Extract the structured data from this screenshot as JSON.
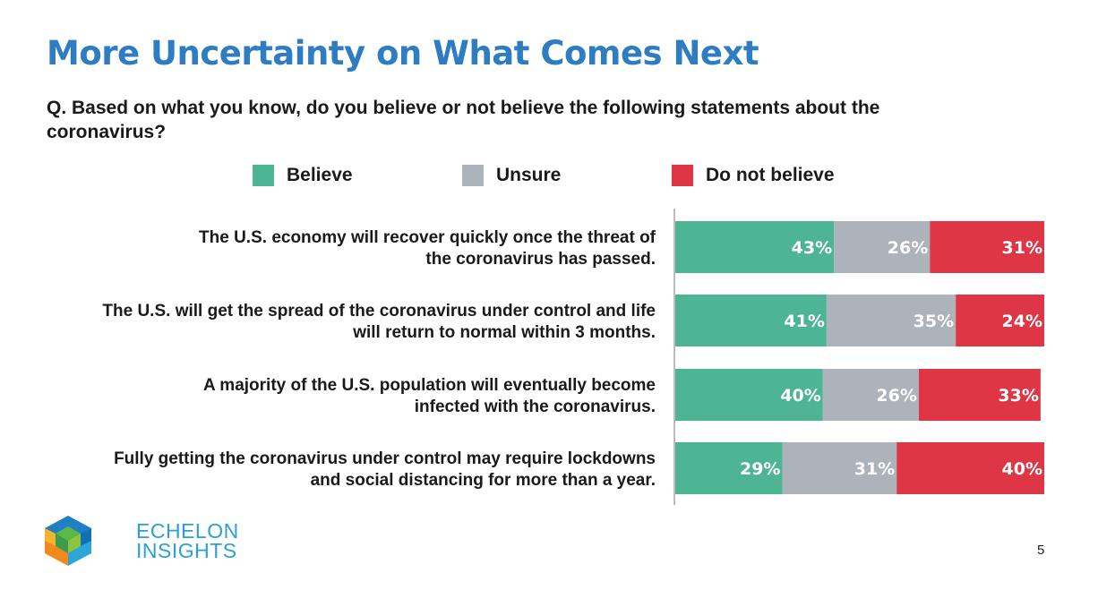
{
  "slide": {
    "title": "More Uncertainty on What Comes Next",
    "question": "Q. Based on what you know, do you believe or not believe the following statements about the coronavirus?",
    "page_number": "5"
  },
  "logo": {
    "line1": "ECHELON",
    "line2": "INSIGHTS"
  },
  "colors": {
    "believe": "#4db594",
    "unsure": "#adb3ba",
    "not_believe": "#de3645",
    "title": "#2e7cc1"
  },
  "chart_data": {
    "type": "bar",
    "orientation": "horizontal",
    "stacked": true,
    "categories": [
      "The U.S. economy will recover quickly once the threat of the coronavirus has passed.",
      "The U.S. will get the spread of the coronavirus under control and life will return to normal within 3 months.",
      "A majority of the U.S. population will eventually become infected with the coronavirus.",
      "Fully getting the coronavirus under control may require lockdowns and social distancing for more than a year."
    ],
    "category_lines": [
      [
        "The U.S. economy will recover quickly once the threat of",
        "the coronavirus has passed."
      ],
      [
        "The U.S. will get the spread of the coronavirus under control and life",
        "will return to normal within 3 months."
      ],
      [
        "A majority of the U.S. population will eventually become",
        "infected with the coronavirus."
      ],
      [
        "Fully getting the coronavirus under control may require lockdowns",
        "and social distancing for more than a year."
      ]
    ],
    "series": [
      {
        "name": "Believe",
        "values": [
          43,
          41,
          40,
          29
        ],
        "labels": [
          "43%",
          "41%",
          "40%",
          "29%"
        ]
      },
      {
        "name": "Unsure",
        "values": [
          26,
          35,
          26,
          31
        ],
        "labels": [
          "26%",
          "35%",
          "26%",
          "31%"
        ]
      },
      {
        "name": "Do not believe",
        "values": [
          31,
          24,
          33,
          40
        ],
        "labels": [
          "31%",
          "24%",
          "33%",
          "40%"
        ]
      }
    ],
    "xlim": [
      0,
      100
    ],
    "legend": "top"
  }
}
